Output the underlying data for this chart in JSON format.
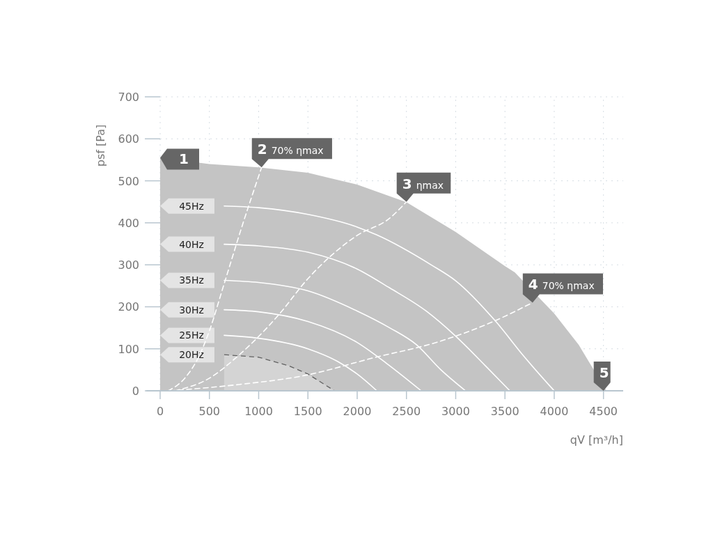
{
  "chart_data": {
    "type": "line",
    "xlabel": "qV [m³/h]",
    "ylabel": "psf [Pa]",
    "xlim": [
      0,
      4700
    ],
    "ylim": [
      0,
      700
    ],
    "xticks": [
      0,
      500,
      1000,
      1500,
      2000,
      2500,
      3000,
      3500,
      4000,
      4500
    ],
    "yticks": [
      0,
      100,
      200,
      300,
      400,
      500,
      600,
      700
    ],
    "grid": true,
    "series": [
      {
        "type": "area",
        "color": "#c4c4c4",
        "x": [
          0,
          500,
          1000,
          1500,
          2000,
          2500,
          3000,
          3500,
          3600,
          4000,
          4250,
          4370,
          4530
        ],
        "values": [
          555,
          540,
          532,
          519,
          491,
          449,
          378,
          297,
          282,
          184,
          109,
          62,
          0
        ]
      },
      {
        "type": "area",
        "name": "20Hz",
        "color": "#d4d4d4",
        "line_style": "dashed",
        "x": [
          650,
          1000,
          1300,
          1500,
          1770
        ],
        "values": [
          86,
          80,
          60,
          40,
          0
        ]
      },
      {
        "name": "45Hz",
        "color": "#ffffff",
        "x": [
          650,
          1000,
          1500,
          2000,
          2200,
          2750,
          3000,
          3400,
          3700,
          4000
        ],
        "values": [
          440,
          436,
          420,
          390,
          371,
          300,
          262,
          167,
          80,
          0
        ]
      },
      {
        "name": "40Hz",
        "color": "#ffffff",
        "x": [
          650,
          1000,
          1500,
          2000,
          2330,
          2700,
          3000,
          3300,
          3550
        ],
        "values": [
          349,
          345,
          330,
          290,
          245,
          190,
          130,
          60,
          0
        ]
      },
      {
        "name": "35Hz",
        "color": "#ffffff",
        "x": [
          650,
          1000,
          1500,
          2000,
          2330,
          2600,
          2850,
          3100
        ],
        "values": [
          263,
          258,
          238,
          190,
          150,
          110,
          50,
          0
        ]
      },
      {
        "name": "30Hz",
        "color": "#ffffff",
        "x": [
          650,
          1000,
          1500,
          2000,
          2300,
          2650
        ],
        "values": [
          193,
          188,
          165,
          115,
          65,
          0
        ]
      },
      {
        "name": "25Hz",
        "color": "#ffffff",
        "x": [
          650,
          1000,
          1500,
          1800,
          2000,
          2200
        ],
        "values": [
          132,
          125,
          100,
          70,
          40,
          0
        ]
      },
      {
        "color": "#ffffff",
        "line_style": "dashed",
        "x": [
          80,
          250,
          400,
          494,
          650,
          826,
          1030
        ],
        "values": [
          0,
          30,
          85,
          139,
          255,
          388,
          532
        ]
      },
      {
        "color": "#ffffff",
        "line_style": "dashed",
        "x": [
          150,
          500,
          800,
          1200,
          1500,
          2000,
          2330,
          2500
        ],
        "values": [
          0,
          30,
          85,
          180,
          267,
          370,
          411,
          450
        ]
      },
      {
        "color": "#ffffff",
        "line_style": "dashed",
        "x": [
          100,
          800,
          1434,
          2190,
          2800,
          3411,
          3780
        ],
        "values": [
          0,
          15,
          35,
          80,
          115,
          168,
          210
        ]
      }
    ],
    "annotations": [
      {
        "text": "1",
        "x": 0,
        "y": 555
      },
      {
        "text": "2 70% ηmax",
        "x": 1030,
        "y": 532
      },
      {
        "text": "3 ηmax",
        "x": 2500,
        "y": 450
      },
      {
        "text": "4 70% ηmax",
        "x": 3780,
        "y": 210
      },
      {
        "text": "5",
        "x": 4500,
        "y": 0
      }
    ]
  }
}
